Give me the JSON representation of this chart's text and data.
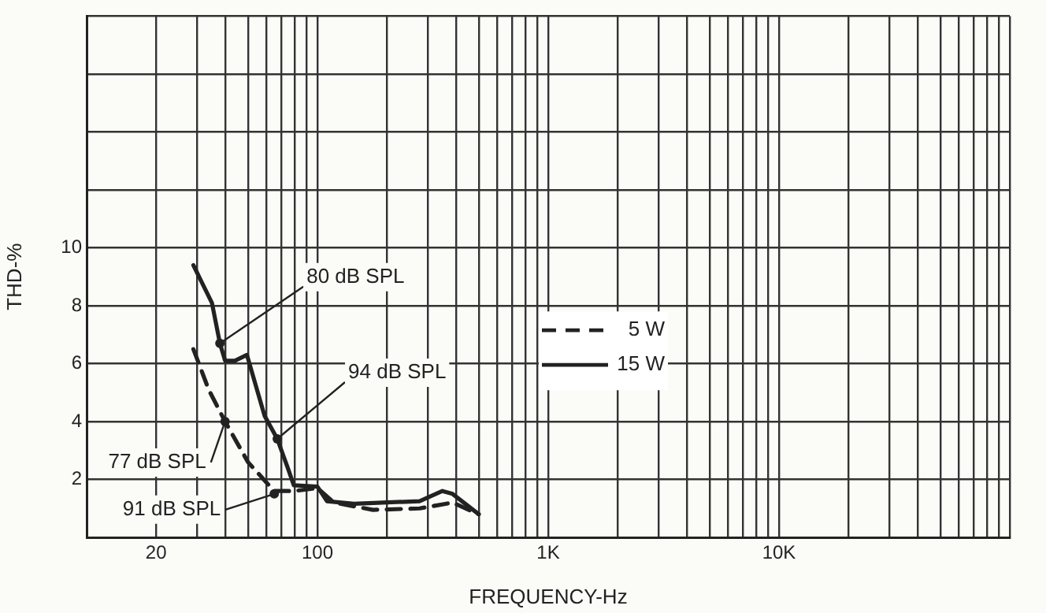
{
  "chart_data": {
    "type": "line",
    "xlabel": "FREQUENCY-Hz",
    "ylabel": "THD-%",
    "log": "x",
    "grid": true,
    "legend": "center",
    "marker": "none",
    "xlim": [
      10,
      100000
    ],
    "ylim": [
      0,
      18
    ],
    "xticks": [
      {
        "value": 10,
        "label": null
      },
      20,
      {
        "value": 30,
        "label": null
      },
      {
        "value": 40,
        "label": null
      },
      {
        "value": 50,
        "label": null
      },
      {
        "value": 60,
        "label": null
      },
      {
        "value": 70,
        "label": null
      },
      {
        "value": 80,
        "label": null
      },
      {
        "value": 90,
        "label": null
      },
      100,
      {
        "value": 200,
        "label": null
      },
      {
        "value": 300,
        "label": null
      },
      {
        "value": 400,
        "label": null
      },
      {
        "value": 500,
        "label": null
      },
      {
        "value": 600,
        "label": null
      },
      {
        "value": 700,
        "label": null
      },
      {
        "value": 800,
        "label": null
      },
      {
        "value": 900,
        "label": null
      },
      {
        "value": 1000,
        "label": "1K"
      },
      {
        "value": 2000,
        "label": null
      },
      {
        "value": 3000,
        "label": null
      },
      {
        "value": 4000,
        "label": null
      },
      {
        "value": 5000,
        "label": null
      },
      {
        "value": 6000,
        "label": null
      },
      {
        "value": 7000,
        "label": null
      },
      {
        "value": 8000,
        "label": null
      },
      {
        "value": 9000,
        "label": null
      },
      {
        "value": 10000,
        "label": "10K"
      },
      {
        "value": 20000,
        "label": null
      },
      {
        "value": 30000,
        "label": null
      },
      {
        "value": 40000,
        "label": null
      },
      {
        "value": 50000,
        "label": null
      },
      {
        "value": 60000,
        "label": null
      },
      {
        "value": 70000,
        "label": null
      },
      {
        "value": 80000,
        "label": null
      },
      {
        "value": 90000,
        "label": null
      },
      {
        "value": 100000,
        "label": null
      }
    ],
    "yticks": [
      2,
      4,
      6,
      8,
      10,
      {
        "value": 12,
        "label": null
      },
      {
        "value": 14,
        "label": null
      },
      {
        "value": 16,
        "label": null
      },
      {
        "value": 18,
        "label": null
      }
    ],
    "series": [
      {
        "name": "5 W",
        "color": "#222222",
        "line_style": "dashed",
        "x": [
          29,
          33.8,
          39.8,
          50,
          65,
          79,
          100,
          118,
          174,
          277,
          385,
          500
        ],
        "values": [
          6.5,
          5.1,
          4.0,
          2.6,
          1.6,
          1.6,
          1.7,
          1.2,
          0.95,
          1.0,
          1.2,
          0.8
        ]
      },
      {
        "name": "15 W",
        "color": "#222222",
        "line_style": "solid",
        "x": [
          29,
          34.9,
          37.8,
          39.8,
          43.9,
          49.5,
          59,
          67,
          74.4,
          79,
          100,
          110,
          144,
          277,
          348,
          385,
          500
        ],
        "values": [
          9.4,
          8.1,
          6.7,
          6.1,
          6.1,
          6.3,
          4.2,
          3.4,
          2.4,
          1.8,
          1.75,
          1.25,
          1.16,
          1.25,
          1.6,
          1.5,
          0.8
        ]
      }
    ],
    "annotations": [
      {
        "text": "80 dB SPL",
        "x": 37.8,
        "y": 6.7
      },
      {
        "text": "94 dB SPL",
        "x": 67,
        "y": 3.4
      },
      {
        "text": "77 dB SPL",
        "x": 39.8,
        "y": 4.0
      },
      {
        "text": "91 dB SPL",
        "x": 65,
        "y": 1.5
      }
    ]
  }
}
